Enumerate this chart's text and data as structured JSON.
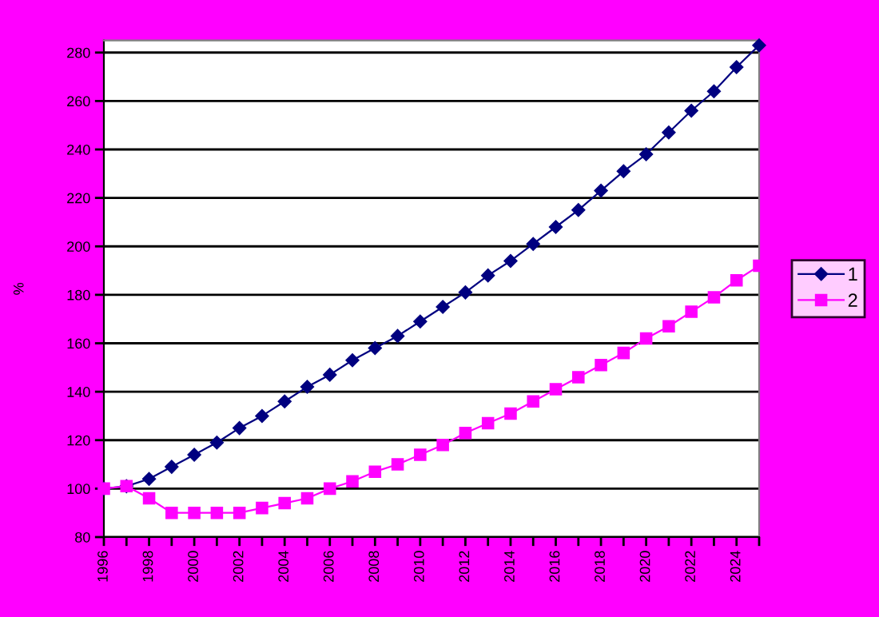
{
  "chart_data": {
    "type": "line",
    "ylabel": "%",
    "x": [
      1996,
      1997,
      1998,
      1999,
      2000,
      2001,
      2002,
      2003,
      2004,
      2005,
      2006,
      2007,
      2008,
      2009,
      2010,
      2011,
      2012,
      2013,
      2014,
      2015,
      2016,
      2017,
      2018,
      2019,
      2020,
      2021,
      2022,
      2023,
      2024,
      2025
    ],
    "series": [
      {
        "name": "1",
        "color": "#000080",
        "marker": "diamond",
        "values": [
          100,
          101,
          104,
          109,
          114,
          119,
          125,
          130,
          136,
          142,
          147,
          153,
          158,
          163,
          169,
          175,
          181,
          188,
          194,
          201,
          208,
          215,
          223,
          231,
          238,
          247,
          256,
          264,
          274,
          283
        ]
      },
      {
        "name": "2",
        "color": "#ff00ff",
        "marker": "square",
        "values": [
          100,
          101,
          96,
          90,
          90,
          90,
          90,
          92,
          94,
          96,
          100,
          103,
          107,
          110,
          114,
          118,
          123,
          127,
          131,
          136,
          141,
          146,
          151,
          156,
          162,
          167,
          173,
          179,
          186,
          192
        ]
      }
    ],
    "xlim": [
      1996,
      2025
    ],
    "xticks": [
      1996,
      {
        "value": 1997,
        "label": null
      },
      1998,
      {
        "value": 1999,
        "label": null
      },
      2000,
      {
        "value": 2001,
        "label": null
      },
      2002,
      {
        "value": 2003,
        "label": null
      },
      2004,
      {
        "value": 2005,
        "label": null
      },
      2006,
      {
        "value": 2007,
        "label": null
      },
      2008,
      {
        "value": 2009,
        "label": null
      },
      2010,
      {
        "value": 2011,
        "label": null
      },
      2012,
      {
        "value": 2013,
        "label": null
      },
      2014,
      {
        "value": 2015,
        "label": null
      },
      2016,
      {
        "value": 2017,
        "label": null
      },
      2018,
      {
        "value": 2019,
        "label": null
      },
      2020,
      {
        "value": 2021,
        "label": null
      },
      2022,
      {
        "value": 2023,
        "label": null
      },
      2024,
      {
        "value": 2025,
        "label": null
      }
    ],
    "ylim": [
      80,
      285
    ],
    "yticks": [
      80,
      100,
      120,
      140,
      160,
      180,
      200,
      220,
      240,
      260,
      280
    ],
    "grid": "y",
    "legend": "right",
    "line_style": "solid"
  }
}
